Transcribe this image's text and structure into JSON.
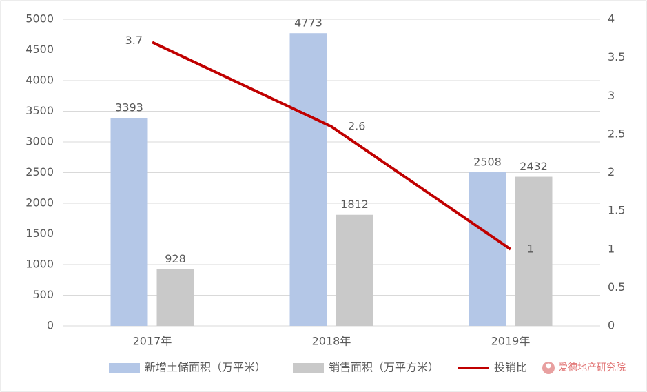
{
  "chart_data": {
    "type": "bar",
    "categories": [
      "2017年",
      "2018年",
      "2019年"
    ],
    "series": [
      {
        "name": "新增土储面积（万平米）",
        "color": "#b4c7e7",
        "values": [
          3393,
          4773,
          2508
        ]
      },
      {
        "name": "销售面积（万平方米）",
        "color": "#c9c9c9",
        "values": [
          928,
          1812,
          2432
        ]
      },
      {
        "name": "投销比",
        "color": "#c00000",
        "type": "line",
        "axis": "y2",
        "values": [
          3.7,
          2.6,
          1
        ]
      }
    ],
    "ylim": [
      0,
      5000
    ],
    "yticks": [
      0,
      500,
      1000,
      1500,
      2000,
      2500,
      3000,
      3500,
      4000,
      4500,
      5000
    ],
    "y2lim": [
      0,
      4
    ],
    "y2ticks": [
      0,
      0.5,
      1,
      1.5,
      2,
      2.5,
      3,
      3.5,
      4
    ],
    "grid": true,
    "legend": "bottom",
    "watermark": "爱德地产研究院"
  }
}
